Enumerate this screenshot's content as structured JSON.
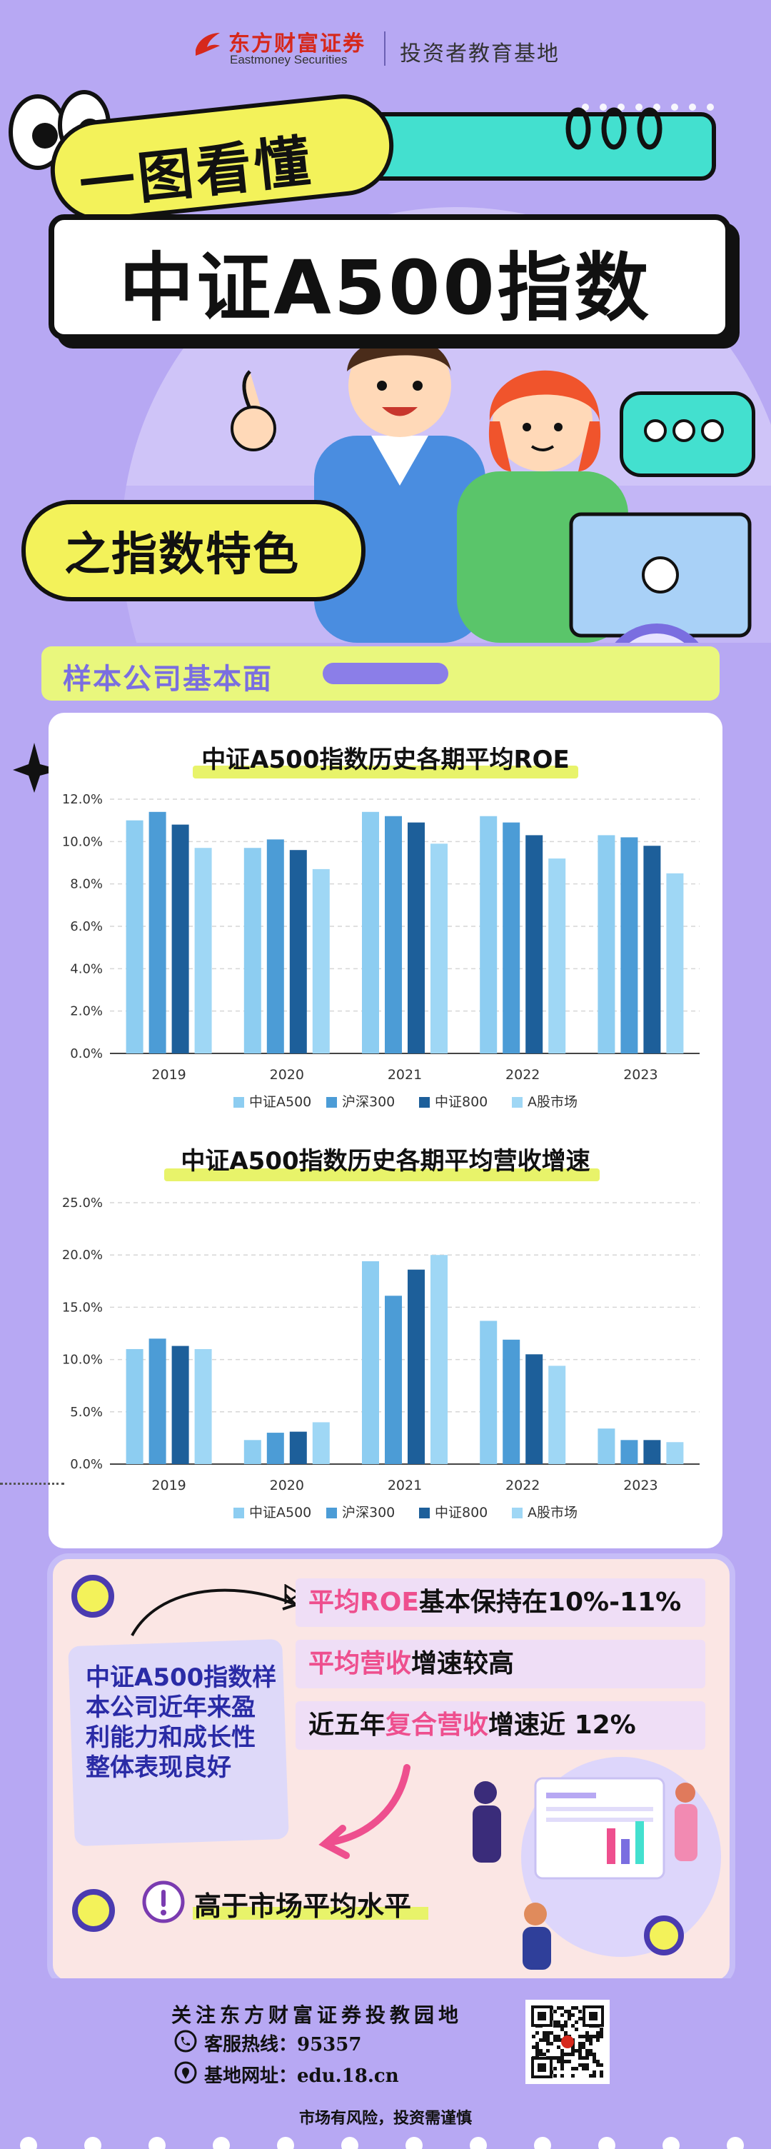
{
  "brand": {
    "name": "东方财富证券",
    "name_en": "Eastmoney Securities",
    "subtitle": "投资者教育基地"
  },
  "hero": {
    "tagline": "一图看懂",
    "title": "中证A500指数",
    "feature": "之指数特色"
  },
  "section": {
    "title": "样本公司基本面"
  },
  "colors": {
    "series": [
      "#8dcdf1",
      "#4c9cd6",
      "#1d5f9a",
      "#9fd7f5"
    ],
    "accent_yellow": "#e8f36a",
    "accent_purple": "#7a6ee0",
    "pink": "#ee4f8e"
  },
  "chart_data": [
    {
      "type": "bar",
      "title": "中证A500指数历史各期平均ROE",
      "categories": [
        "2019",
        "2020",
        "2021",
        "2022",
        "2023"
      ],
      "yticks": [
        "0.0%",
        "2.0%",
        "4.0%",
        "6.0%",
        "8.0%",
        "10.0%",
        "12.0%"
      ],
      "ylim": [
        0,
        12
      ],
      "series": [
        {
          "name": "中证A500",
          "values": [
            11.0,
            9.7,
            11.4,
            11.2,
            10.3
          ]
        },
        {
          "name": "沪深300",
          "values": [
            11.4,
            10.1,
            11.2,
            10.9,
            10.2
          ]
        },
        {
          "name": "中证800",
          "values": [
            10.8,
            9.6,
            10.9,
            10.3,
            9.8
          ]
        },
        {
          "name": "A股市场",
          "values": [
            9.7,
            8.7,
            9.9,
            9.2,
            8.5
          ]
        }
      ],
      "legend": "bottom",
      "grid": true
    },
    {
      "type": "bar",
      "title": "中证A500指数历史各期平均营收增速",
      "categories": [
        "2019",
        "2020",
        "2021",
        "2022",
        "2023"
      ],
      "yticks": [
        "0.0%",
        "5.0%",
        "10.0%",
        "15.0%",
        "20.0%",
        "25.0%"
      ],
      "ylim": [
        0,
        25
      ],
      "series": [
        {
          "name": "中证A500",
          "values": [
            11.0,
            2.3,
            19.4,
            13.7,
            3.4
          ]
        },
        {
          "name": "沪深300",
          "values": [
            12.0,
            3.0,
            16.1,
            11.9,
            2.3
          ]
        },
        {
          "name": "中证800",
          "values": [
            11.3,
            3.1,
            18.6,
            10.5,
            2.3
          ]
        },
        {
          "name": "A股市场",
          "values": [
            11.0,
            4.0,
            20.0,
            9.4,
            2.1
          ]
        }
      ],
      "legend": "bottom",
      "grid": true
    }
  ],
  "summary": {
    "left_text": "中证A500指数样本公司近年来盈利能力和成长性整体表现良好",
    "points": [
      {
        "hl": "平均ROE",
        "rest": "基本保持在10%-11%"
      },
      {
        "hl": "平均营收",
        "rest": "增速较高"
      },
      {
        "pre": "近五年",
        "hl": "复合营收",
        "rest": "增速近 12%"
      }
    ],
    "conclusion": "高于市场平均水平"
  },
  "footer": {
    "follow": "关注东方财富证券投教园地",
    "hotline": "客服热线：95357",
    "website": "基地网址：edu.18.cn",
    "risk": "市场有风险，投资需谨慎"
  }
}
